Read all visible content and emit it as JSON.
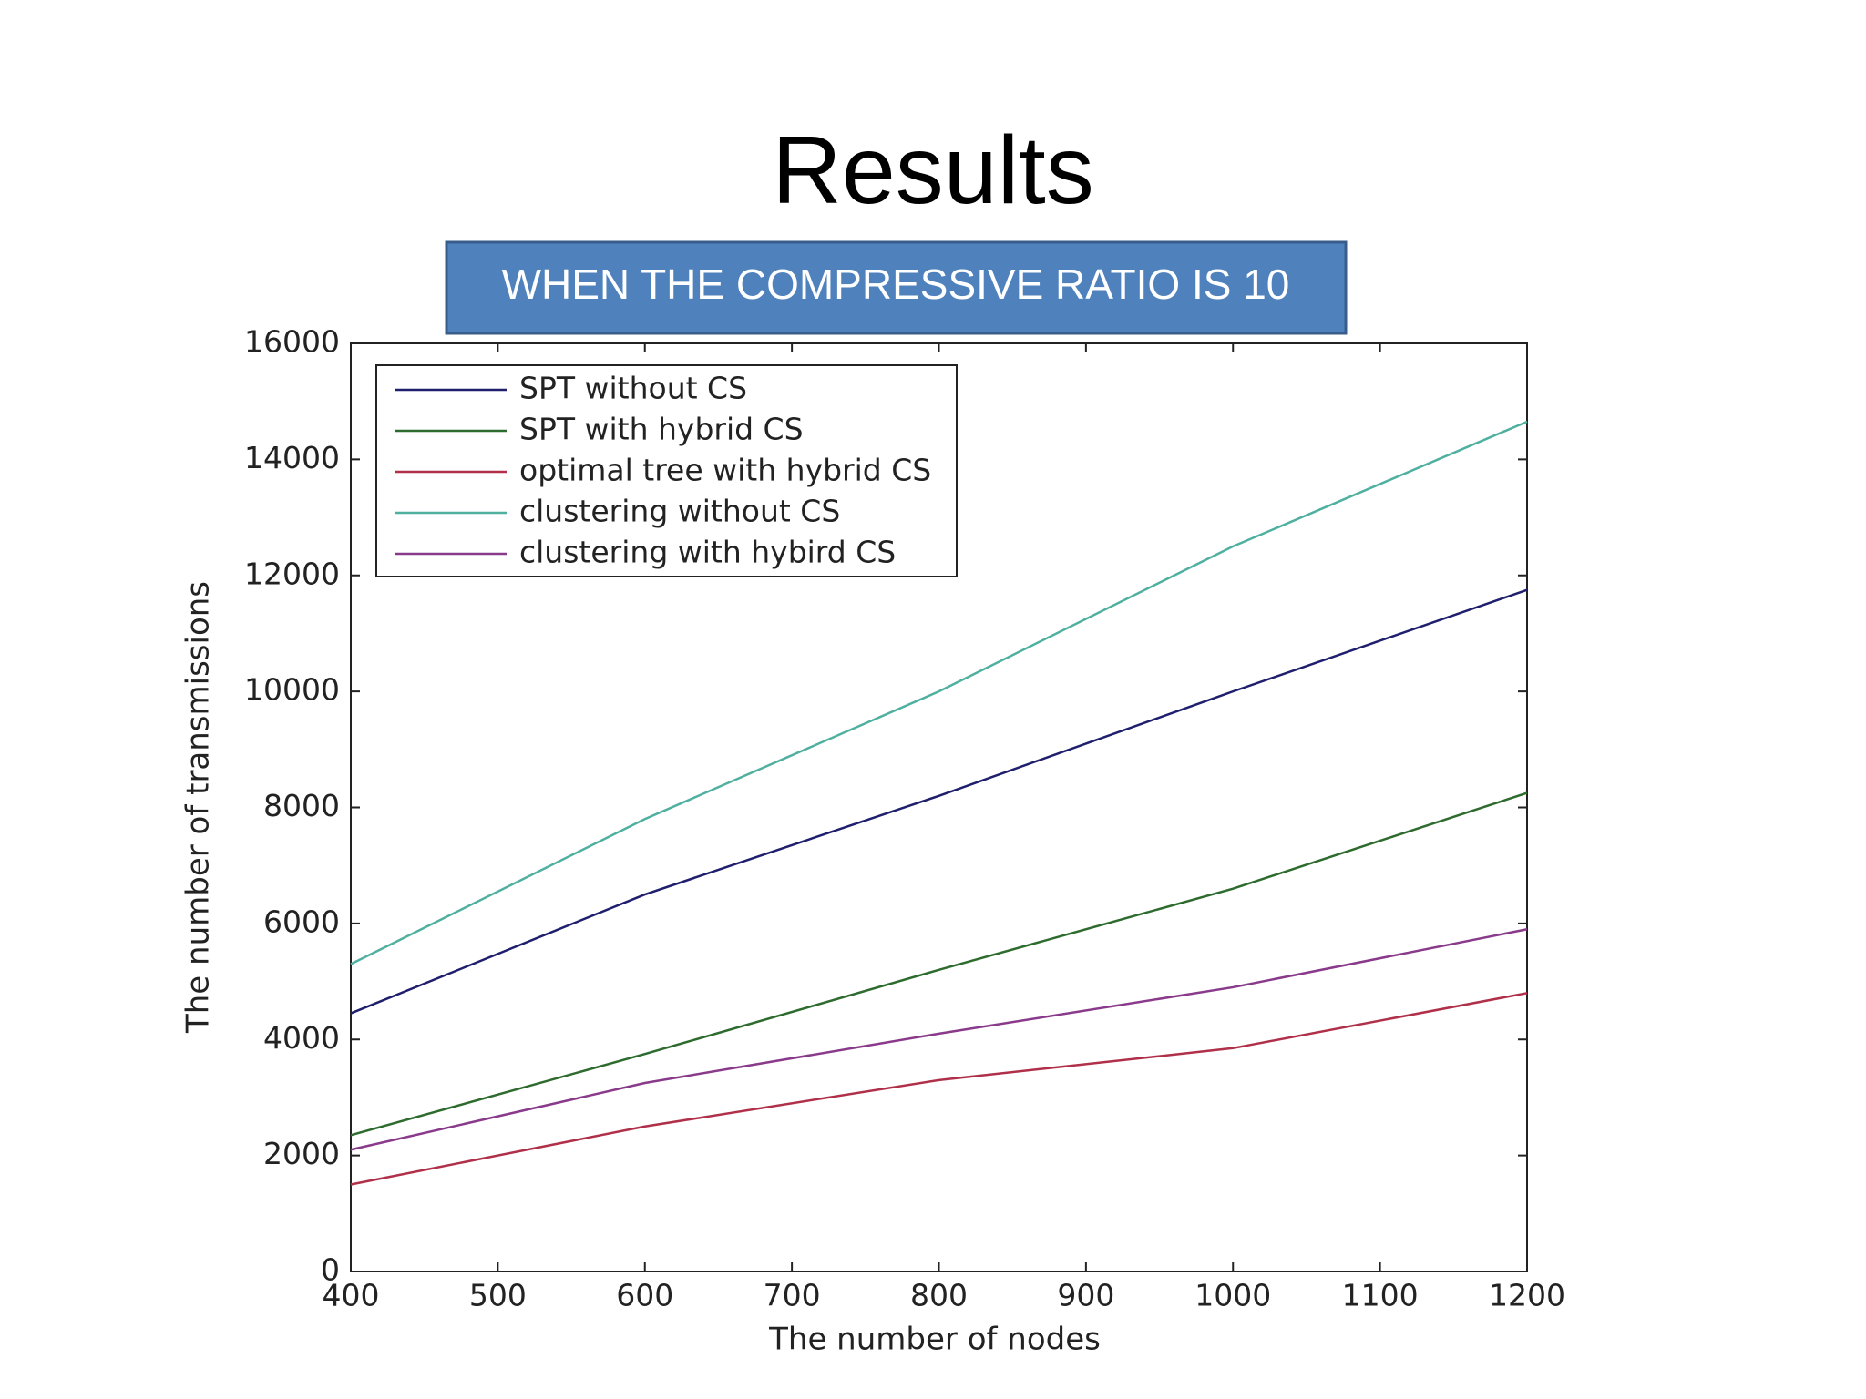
{
  "chart_data": {
    "type": "line",
    "title": "Results",
    "subtitle": "WHEN THE COMPRESSIVE RATIO IS 10",
    "x_label": "The number of nodes",
    "y_label": "The number of transmissions",
    "x": [
      400,
      600,
      800,
      1000,
      1200
    ],
    "series": [
      {
        "name": "SPT without CS",
        "color": "#1f1f6e",
        "values": [
          4450,
          6500,
          8200,
          10000,
          11750
        ]
      },
      {
        "name": "SPT with hybrid CS",
        "color": "#2e6b2e",
        "values": [
          2350,
          3750,
          5200,
          6600,
          8250
        ]
      },
      {
        "name": "optimal tree with hybrid CS",
        "color": "#b0304a",
        "values": [
          1500,
          2500,
          3300,
          3850,
          4800
        ]
      },
      {
        "name": "clustering without CS",
        "color": "#4fb0a0",
        "values": [
          5300,
          7800,
          10000,
          12500,
          14650
        ]
      },
      {
        "name": "clustering with hybird CS",
        "color": "#8a3a8a",
        "values": [
          2100,
          3250,
          4100,
          4900,
          5900
        ]
      }
    ],
    "xlim": [
      400,
      1200
    ],
    "xticks": [
      400,
      500,
      600,
      700,
      800,
      900,
      1000,
      1100,
      1200
    ],
    "ylim": [
      0,
      16000
    ],
    "yticks": [
      0,
      2000,
      4000,
      6000,
      8000,
      10000,
      12000,
      14000,
      16000
    ],
    "legend": "upper left",
    "grid": false
  }
}
